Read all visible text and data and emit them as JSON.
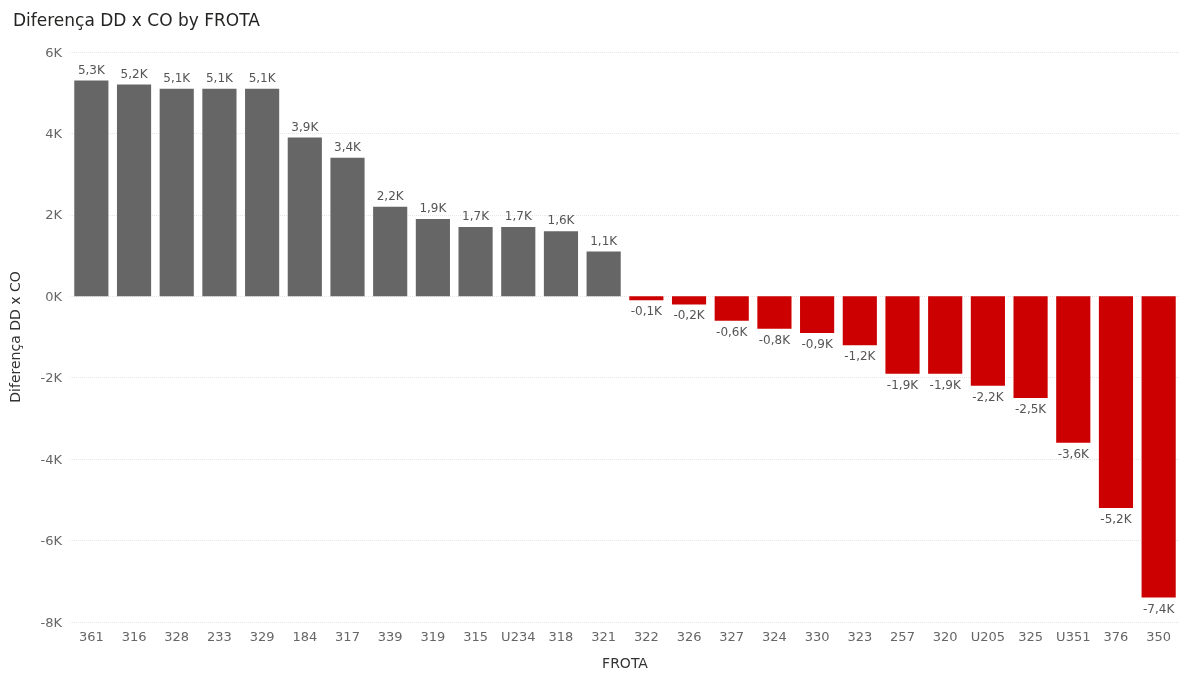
{
  "chart_data": {
    "type": "bar",
    "title": "Diferença DD x CO by FROTA",
    "xlabel": "FROTA",
    "ylabel": "Diferença DD x CO",
    "categories": [
      "361",
      "316",
      "328",
      "233",
      "329",
      "184",
      "317",
      "339",
      "319",
      "315",
      "U234",
      "318",
      "321",
      "322",
      "326",
      "327",
      "324",
      "330",
      "323",
      "257",
      "320",
      "U205",
      "325",
      "U351",
      "376",
      "350"
    ],
    "values": [
      5300,
      5200,
      5100,
      5100,
      5100,
      3900,
      3400,
      2200,
      1900,
      1700,
      1700,
      1600,
      1100,
      -100,
      -200,
      -600,
      -800,
      -900,
      -1200,
      -1900,
      -1900,
      -2200,
      -2500,
      -3600,
      -5200,
      -7400
    ],
    "value_labels": [
      "5,3K",
      "5,2K",
      "5,1K",
      "5,1K",
      "5,1K",
      "3,9K",
      "3,4K",
      "2,2K",
      "1,9K",
      "1,7K",
      "1,7K",
      "1,6K",
      "1,1K",
      "-0,1K",
      "-0,2K",
      "-0,6K",
      "-0,8K",
      "-0,9K",
      "-1,2K",
      "-1,9K",
      "-1,9K",
      "-2,2K",
      "-2,5K",
      "-3,6K",
      "-5,2K",
      "-7,4K"
    ],
    "colors": [
      "#666666",
      "#666666",
      "#666666",
      "#666666",
      "#666666",
      "#666666",
      "#666666",
      "#666666",
      "#666666",
      "#666666",
      "#666666",
      "#666666",
      "#666666",
      "#cc0000",
      "#cc0000",
      "#cc0000",
      "#cc0000",
      "#cc0000",
      "#cc0000",
      "#cc0000",
      "#cc0000",
      "#cc0000",
      "#cc0000",
      "#cc0000",
      "#cc0000",
      "#cc0000"
    ],
    "ylim": [
      -8000,
      6000
    ],
    "yticks": [
      {
        "value": -8000,
        "label": "-8K"
      },
      {
        "value": -6000,
        "label": "-6K"
      },
      {
        "value": -4000,
        "label": "-4K"
      },
      {
        "value": -2000,
        "label": "-2K"
      },
      {
        "value": 0,
        "label": "0K"
      },
      {
        "value": 2000,
        "label": "2K"
      },
      {
        "value": 4000,
        "label": "4K"
      },
      {
        "value": 6000,
        "label": "6K"
      }
    ],
    "grid": "y"
  }
}
